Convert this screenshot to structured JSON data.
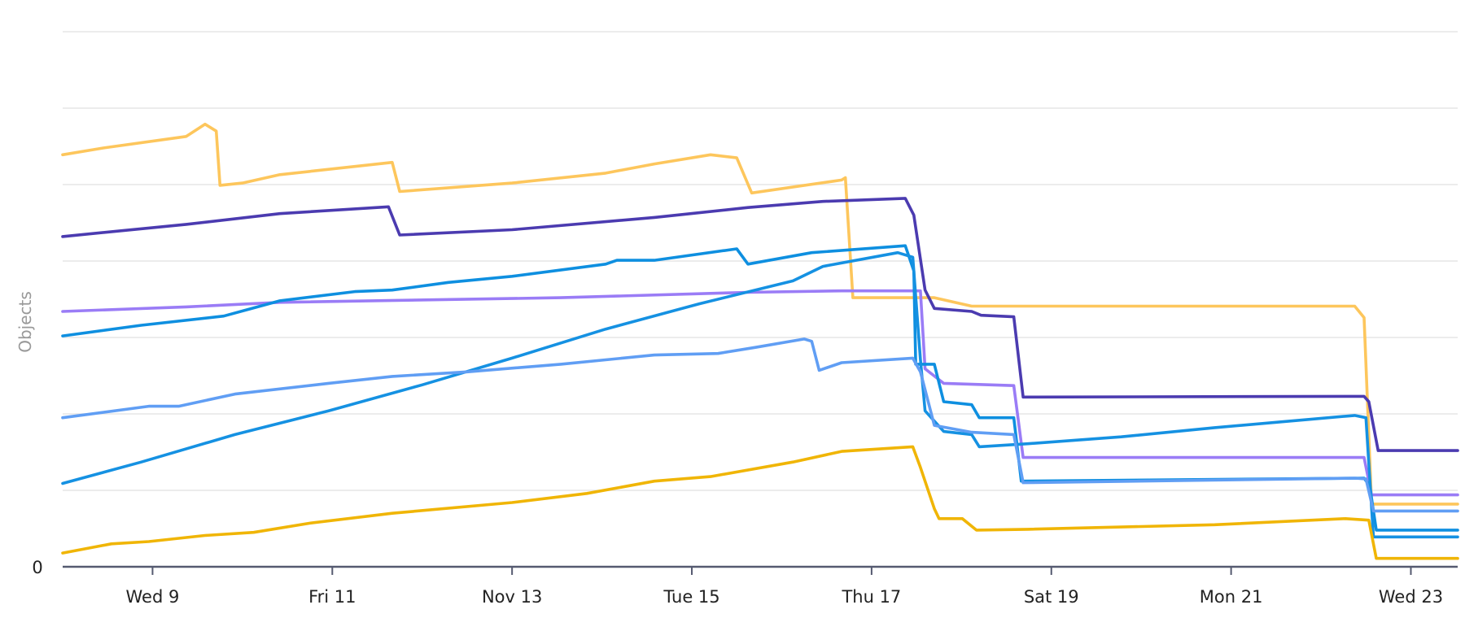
{
  "chart_data": {
    "type": "line",
    "title": "",
    "xlabel": "",
    "ylabel": "Objects",
    "x_range": [
      "11-08 00:00",
      "11-23 12:30"
    ],
    "x_ticks": [
      {
        "label": "Wed 9",
        "at": "11-09 00:00"
      },
      {
        "label": "Fri 11",
        "at": "11-11 00:00"
      },
      {
        "label": "Nov 13",
        "at": "11-13 00:00"
      },
      {
        "label": "Tue 15",
        "at": "11-15 00:00"
      },
      {
        "label": "Thu 17",
        "at": "11-17 00:00"
      },
      {
        "label": "Sat 19",
        "at": "11-19 00:00"
      },
      {
        "label": "Mon 21",
        "at": "11-21 00:00"
      },
      {
        "label": "Wed 23",
        "at": "11-23 00:00"
      }
    ],
    "y_tick_labels": [
      "0"
    ],
    "ylim": [
      0,
      7
    ],
    "grid": true,
    "gridlines": 7,
    "legend": "none",
    "series": [
      {
        "color": "#fdc65c",
        "points": [
          [
            "11-08 00:00",
            5.39
          ],
          [
            "11-08 11:00",
            5.48
          ],
          [
            "11-09 09:00",
            5.63
          ],
          [
            "11-09 14:00",
            5.79
          ],
          [
            "11-09 17:00",
            5.7
          ],
          [
            "11-09 18:00",
            4.99
          ],
          [
            "11-10 00:00",
            5.02
          ],
          [
            "11-10 10:00",
            5.13
          ],
          [
            "11-11 16:00",
            5.29
          ],
          [
            "11-11 18:00",
            4.91
          ],
          [
            "11-13 00:00",
            5.02
          ],
          [
            "11-14 01:00",
            5.15
          ],
          [
            "11-14 14:00",
            5.27
          ],
          [
            "11-15 05:00",
            5.39
          ],
          [
            "11-15 12:00",
            5.35
          ],
          [
            "11-15 16:00",
            4.89
          ],
          [
            "11-16 16:00",
            5.06
          ],
          [
            "11-16 17:00",
            5.09
          ],
          [
            "11-16 19:00",
            3.52
          ],
          [
            "11-17 16:46",
            3.52
          ],
          [
            "11-18 02:44",
            3.41
          ],
          [
            "11-22 09:01",
            3.41
          ],
          [
            "11-22 11:31",
            3.26
          ],
          [
            "11-22 13:31",
            0.82
          ],
          [
            "11-23 12:30",
            0.82
          ]
        ]
      },
      {
        "color": "#4b3bb0",
        "points": [
          [
            "11-08 00:00",
            4.32
          ],
          [
            "11-09 09:00",
            4.48
          ],
          [
            "11-10 10:00",
            4.62
          ],
          [
            "11-11 15:00",
            4.71
          ],
          [
            "11-11 18:00",
            4.34
          ],
          [
            "11-13 00:00",
            4.41
          ],
          [
            "11-14 14:00",
            4.57
          ],
          [
            "11-15 15:00",
            4.7
          ],
          [
            "11-16 11:00",
            4.78
          ],
          [
            "11-17 09:00",
            4.82
          ],
          [
            "11-17 11:17",
            4.6
          ],
          [
            "11-17 14:17",
            3.62
          ],
          [
            "11-17 16:46",
            3.38
          ],
          [
            "11-18 02:44",
            3.34
          ],
          [
            "11-18 05:14",
            3.29
          ],
          [
            "11-18 13:58",
            3.27
          ],
          [
            "11-18 16:28",
            2.22
          ],
          [
            "11-22 11:31",
            2.23
          ],
          [
            "11-22 12:46",
            2.16
          ],
          [
            "11-22 15:16",
            1.52
          ],
          [
            "11-23 12:30",
            1.52
          ]
        ]
      },
      {
        "color": "#9a7cf6",
        "points": [
          [
            "11-08 00:00",
            3.34
          ],
          [
            "11-09 09:00",
            3.4
          ],
          [
            "11-10 10:00",
            3.46
          ],
          [
            "11-13 13:00",
            3.52
          ],
          [
            "11-15 15:00",
            3.59
          ],
          [
            "11-16 16:00",
            3.61
          ],
          [
            "11-17 13:02",
            3.61
          ],
          [
            "11-17 14:17",
            2.59
          ],
          [
            "11-17 19:15",
            2.4
          ],
          [
            "11-18 13:58",
            2.37
          ],
          [
            "11-18 16:28",
            1.43
          ],
          [
            "11-22 11:31",
            1.43
          ],
          [
            "11-22 13:31",
            0.94
          ],
          [
            "11-23 12:30",
            0.94
          ]
        ]
      },
      {
        "color": "#0e8fe0",
        "points": [
          [
            "11-08 00:00",
            3.02
          ],
          [
            "11-08 21:00",
            3.16
          ],
          [
            "11-09 19:00",
            3.28
          ],
          [
            "11-10 10:00",
            3.48
          ],
          [
            "11-11 06:00",
            3.6
          ],
          [
            "11-11 16:00",
            3.62
          ],
          [
            "11-12 07:00",
            3.72
          ],
          [
            "11-13 00:00",
            3.8
          ],
          [
            "11-14 01:00",
            3.96
          ],
          [
            "11-14 04:00",
            4.01
          ],
          [
            "11-14 14:00",
            4.01
          ],
          [
            "11-15 12:00",
            4.16
          ],
          [
            "11-15 15:00",
            3.96
          ],
          [
            "11-16 08:00",
            4.11
          ],
          [
            "11-17 09:00",
            4.2
          ],
          [
            "11-17 11:17",
            3.87
          ],
          [
            "11-17 11:47",
            2.65
          ],
          [
            "11-17 16:46",
            2.65
          ],
          [
            "11-17 19:15",
            2.16
          ],
          [
            "11-18 02:44",
            2.12
          ],
          [
            "11-18 04:45",
            1.95
          ],
          [
            "11-18 13:58",
            1.95
          ],
          [
            "11-18 15:58",
            1.12
          ],
          [
            "11-22 11:31",
            1.16
          ],
          [
            "11-22 13:01",
            1.06
          ],
          [
            "11-22 14:46",
            0.48
          ],
          [
            "11-23 12:30",
            0.48
          ]
        ]
      },
      {
        "color": "#1591e2",
        "points": [
          [
            "11-08 00:00",
            1.09
          ],
          [
            "11-08 21:00",
            1.37
          ],
          [
            "11-09 22:00",
            1.73
          ],
          [
            "11-10 23:00",
            2.04
          ],
          [
            "11-12 00:00",
            2.38
          ],
          [
            "11-13 00:00",
            2.73
          ],
          [
            "11-14 01:00",
            3.11
          ],
          [
            "11-15 02:00",
            3.44
          ],
          [
            "11-16 03:00",
            3.74
          ],
          [
            "11-16 11:00",
            3.93
          ],
          [
            "11-17 07:00",
            4.11
          ],
          [
            "11-17 11:00",
            4.05
          ],
          [
            "11-17 13:02",
            2.71
          ],
          [
            "11-17 14:17",
            2.04
          ],
          [
            "11-17 19:15",
            1.77
          ],
          [
            "11-18 02:44",
            1.73
          ],
          [
            "11-18 04:45",
            1.57
          ],
          [
            "11-18 17:43",
            1.61
          ],
          [
            "11-19 18:40",
            1.7
          ],
          [
            "11-20 19:37",
            1.82
          ],
          [
            "11-22 09:01",
            1.98
          ],
          [
            "11-22 12:01",
            1.95
          ],
          [
            "11-22 14:01",
            0.39
          ],
          [
            "11-23 12:30",
            0.39
          ]
        ]
      },
      {
        "color": "#609ef4",
        "points": [
          [
            "11-08 00:00",
            1.95
          ],
          [
            "11-08 23:00",
            2.1
          ],
          [
            "11-09 07:00",
            2.1
          ],
          [
            "11-09 22:00",
            2.26
          ],
          [
            "11-10 23:00",
            2.4
          ],
          [
            "11-11 16:00",
            2.49
          ],
          [
            "11-12 12:00",
            2.55
          ],
          [
            "11-13 13:00",
            2.65
          ],
          [
            "11-14 14:00",
            2.77
          ],
          [
            "11-15 07:00",
            2.79
          ],
          [
            "11-15 17:00",
            2.87
          ],
          [
            "11-16 06:00",
            2.98
          ],
          [
            "11-16 08:00",
            2.95
          ],
          [
            "11-16 10:00",
            2.57
          ],
          [
            "11-16 16:00",
            2.67
          ],
          [
            "11-17 11:00",
            2.73
          ],
          [
            "11-17 13:02",
            2.55
          ],
          [
            "11-17 16:46",
            1.85
          ],
          [
            "11-18 02:44",
            1.76
          ],
          [
            "11-18 13:58",
            1.73
          ],
          [
            "11-18 16:28",
            1.1
          ],
          [
            "11-22 09:01",
            1.16
          ],
          [
            "11-22 12:01",
            1.15
          ],
          [
            "11-22 14:01",
            0.73
          ],
          [
            "11-23 12:30",
            0.73
          ]
        ]
      },
      {
        "color": "#f0b505",
        "points": [
          [
            "11-08 00:00",
            0.18
          ],
          [
            "11-08 13:00",
            0.3
          ],
          [
            "11-08 23:00",
            0.33
          ],
          [
            "11-09 14:00",
            0.41
          ],
          [
            "11-10 03:00",
            0.45
          ],
          [
            "11-10 18:00",
            0.57
          ],
          [
            "11-11 16:00",
            0.7
          ],
          [
            "11-13 00:00",
            0.84
          ],
          [
            "11-13 20:00",
            0.96
          ],
          [
            "11-14 14:00",
            1.12
          ],
          [
            "11-15 05:00",
            1.18
          ],
          [
            "11-16 03:00",
            1.37
          ],
          [
            "11-16 16:00",
            1.51
          ],
          [
            "11-17 11:00",
            1.57
          ],
          [
            "11-17 13:02",
            1.3
          ],
          [
            "11-17 16:46",
            0.76
          ],
          [
            "11-17 18:01",
            0.63
          ],
          [
            "11-18 00:14",
            0.63
          ],
          [
            "11-18 03:59",
            0.48
          ],
          [
            "11-18 17:43",
            0.49
          ],
          [
            "11-20 19:37",
            0.55
          ],
          [
            "11-22 06:32",
            0.63
          ],
          [
            "11-22 12:46",
            0.61
          ],
          [
            "11-22 14:46",
            0.11
          ],
          [
            "11-23 12:30",
            0.11
          ]
        ]
      }
    ]
  }
}
